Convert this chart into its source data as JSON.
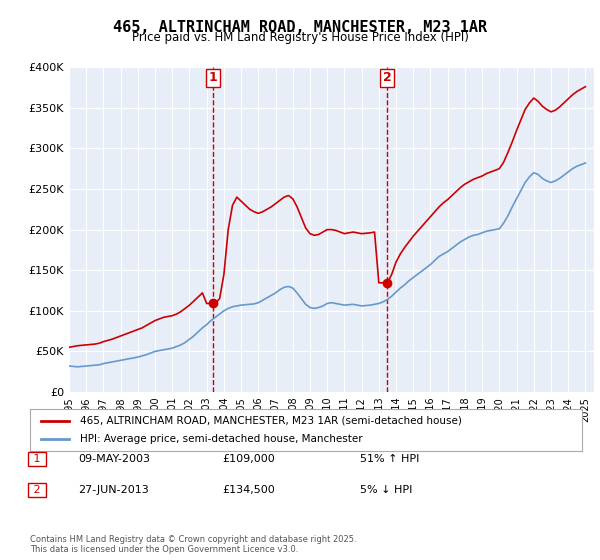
{
  "title": "465, ALTRINCHAM ROAD, MANCHESTER, M23 1AR",
  "subtitle": "Price paid vs. HM Land Registry's House Price Index (HPI)",
  "ylabel": "",
  "xlabel": "",
  "ylim": [
    0,
    400000
  ],
  "yticks": [
    0,
    50000,
    100000,
    150000,
    200000,
    250000,
    300000,
    350000,
    400000
  ],
  "ytick_labels": [
    "£0",
    "£50K",
    "£100K",
    "£150K",
    "£200K",
    "£250K",
    "£300K",
    "£350K",
    "£400K"
  ],
  "xlim_start": 1995.0,
  "xlim_end": 2025.5,
  "background_color": "#e8eef8",
  "plot_bg_color": "#e8eef8",
  "red_line_color": "#cc0000",
  "blue_line_color": "#6699cc",
  "vline_color": "#cc0000",
  "sale1_x": 2003.35,
  "sale1_y": 109000,
  "sale2_x": 2013.48,
  "sale2_y": 134500,
  "legend_label1": "465, ALTRINCHAM ROAD, MANCHESTER, M23 1AR (semi-detached house)",
  "legend_label2": "HPI: Average price, semi-detached house, Manchester",
  "annotation1_date": "09-MAY-2003",
  "annotation1_price": "£109,000",
  "annotation1_pct": "51% ↑ HPI",
  "annotation2_date": "27-JUN-2013",
  "annotation2_price": "£134,500",
  "annotation2_pct": "5% ↓ HPI",
  "footer": "Contains HM Land Registry data © Crown copyright and database right 2025.\nThis data is licensed under the Open Government Licence v3.0.",
  "hpi_years": [
    1995.0,
    1995.25,
    1995.5,
    1995.75,
    1996.0,
    1996.25,
    1996.5,
    1996.75,
    1997.0,
    1997.25,
    1997.5,
    1997.75,
    1998.0,
    1998.25,
    1998.5,
    1998.75,
    1999.0,
    1999.25,
    1999.5,
    1999.75,
    2000.0,
    2000.25,
    2000.5,
    2000.75,
    2001.0,
    2001.25,
    2001.5,
    2001.75,
    2002.0,
    2002.25,
    2002.5,
    2002.75,
    2003.0,
    2003.25,
    2003.5,
    2003.75,
    2004.0,
    2004.25,
    2004.5,
    2004.75,
    2005.0,
    2005.25,
    2005.5,
    2005.75,
    2006.0,
    2006.25,
    2006.5,
    2006.75,
    2007.0,
    2007.25,
    2007.5,
    2007.75,
    2008.0,
    2008.25,
    2008.5,
    2008.75,
    2009.0,
    2009.25,
    2009.5,
    2009.75,
    2010.0,
    2010.25,
    2010.5,
    2010.75,
    2011.0,
    2011.25,
    2011.5,
    2011.75,
    2012.0,
    2012.25,
    2012.5,
    2012.75,
    2013.0,
    2013.25,
    2013.5,
    2013.75,
    2014.0,
    2014.25,
    2014.5,
    2014.75,
    2015.0,
    2015.25,
    2015.5,
    2015.75,
    2016.0,
    2016.25,
    2016.5,
    2016.75,
    2017.0,
    2017.25,
    2017.5,
    2017.75,
    2018.0,
    2018.25,
    2018.5,
    2018.75,
    2019.0,
    2019.25,
    2019.5,
    2019.75,
    2020.0,
    2020.25,
    2020.5,
    2020.75,
    2021.0,
    2021.25,
    2021.5,
    2021.75,
    2022.0,
    2022.25,
    2022.5,
    2022.75,
    2023.0,
    2023.25,
    2023.5,
    2023.75,
    2024.0,
    2024.25,
    2024.5,
    2024.75,
    2025.0
  ],
  "hpi_values": [
    32000,
    31500,
    31000,
    31500,
    32000,
    32500,
    33000,
    33500,
    35000,
    36000,
    37000,
    38000,
    39000,
    40000,
    41000,
    42000,
    43000,
    44500,
    46000,
    48000,
    50000,
    51000,
    52000,
    53000,
    54000,
    56000,
    58000,
    61000,
    65000,
    69000,
    74000,
    79000,
    83000,
    88000,
    92000,
    96000,
    100000,
    103000,
    105000,
    106000,
    107000,
    107500,
    108000,
    108500,
    110000,
    113000,
    116000,
    119000,
    122000,
    126000,
    129000,
    130000,
    128000,
    122000,
    115000,
    108000,
    104000,
    103000,
    104000,
    106000,
    109000,
    110000,
    109000,
    108000,
    107000,
    107500,
    108000,
    107000,
    106000,
    106500,
    107000,
    108000,
    109000,
    111000,
    114000,
    118000,
    123000,
    128000,
    132000,
    137000,
    141000,
    145000,
    149000,
    153000,
    157000,
    162000,
    167000,
    170000,
    173000,
    177000,
    181000,
    185000,
    188000,
    191000,
    193000,
    194000,
    196000,
    198000,
    199000,
    200000,
    201000,
    208000,
    217000,
    228000,
    238000,
    248000,
    258000,
    265000,
    270000,
    268000,
    263000,
    260000,
    258000,
    260000,
    263000,
    267000,
    271000,
    275000,
    278000,
    280000,
    282000
  ],
  "red_years": [
    1995.0,
    1995.25,
    1995.5,
    1995.75,
    1996.0,
    1996.25,
    1996.5,
    1996.75,
    1997.0,
    1997.25,
    1997.5,
    1997.75,
    1998.0,
    1998.25,
    1998.5,
    1998.75,
    1999.0,
    1999.25,
    1999.5,
    1999.75,
    2000.0,
    2000.25,
    2000.5,
    2000.75,
    2001.0,
    2001.25,
    2001.5,
    2001.75,
    2002.0,
    2002.25,
    2002.5,
    2002.75,
    2003.0,
    2003.25,
    2003.5,
    2003.75,
    2004.0,
    2004.25,
    2004.5,
    2004.75,
    2005.0,
    2005.25,
    2005.5,
    2005.75,
    2006.0,
    2006.25,
    2006.5,
    2006.75,
    2007.0,
    2007.25,
    2007.5,
    2007.75,
    2008.0,
    2008.25,
    2008.5,
    2008.75,
    2009.0,
    2009.25,
    2009.5,
    2009.75,
    2010.0,
    2010.25,
    2010.5,
    2010.75,
    2011.0,
    2011.25,
    2011.5,
    2011.75,
    2012.0,
    2012.25,
    2012.5,
    2012.75,
    2013.0,
    2013.25,
    2013.5,
    2013.75,
    2014.0,
    2014.25,
    2014.5,
    2014.75,
    2015.0,
    2015.25,
    2015.5,
    2015.75,
    2016.0,
    2016.25,
    2016.5,
    2016.75,
    2017.0,
    2017.25,
    2017.5,
    2017.75,
    2018.0,
    2018.25,
    2018.5,
    2018.75,
    2019.0,
    2019.25,
    2019.5,
    2019.75,
    2020.0,
    2020.25,
    2020.5,
    2020.75,
    2021.0,
    2021.25,
    2021.5,
    2021.75,
    2022.0,
    2022.25,
    2022.5,
    2022.75,
    2023.0,
    2023.25,
    2023.5,
    2023.75,
    2024.0,
    2024.25,
    2024.5,
    2024.75,
    2025.0
  ],
  "red_values": [
    55000,
    56000,
    57000,
    57500,
    58000,
    58500,
    59000,
    60000,
    62000,
    63500,
    65000,
    67000,
    69000,
    71000,
    73000,
    75000,
    77000,
    79000,
    82000,
    85000,
    88000,
    90000,
    92000,
    93000,
    94000,
    96000,
    99000,
    103000,
    107000,
    112000,
    117000,
    122000,
    109000,
    109000,
    109000,
    115000,
    145000,
    200000,
    230000,
    240000,
    235000,
    230000,
    225000,
    222000,
    220000,
    222000,
    225000,
    228000,
    232000,
    236000,
    240000,
    242000,
    238000,
    228000,
    215000,
    202000,
    195000,
    193000,
    194000,
    197000,
    200000,
    200000,
    199000,
    197000,
    195000,
    196000,
    197000,
    196000,
    195000,
    195500,
    196000,
    197000,
    134500,
    134500,
    134500,
    145000,
    160000,
    170000,
    178000,
    185000,
    192000,
    198000,
    204000,
    210000,
    216000,
    222000,
    228000,
    233000,
    237000,
    242000,
    247000,
    252000,
    256000,
    259000,
    262000,
    264000,
    266000,
    269000,
    271000,
    273000,
    275000,
    283000,
    295000,
    308000,
    322000,
    335000,
    348000,
    356000,
    362000,
    358000,
    352000,
    348000,
    345000,
    347000,
    351000,
    356000,
    361000,
    366000,
    370000,
    373000,
    376000
  ]
}
